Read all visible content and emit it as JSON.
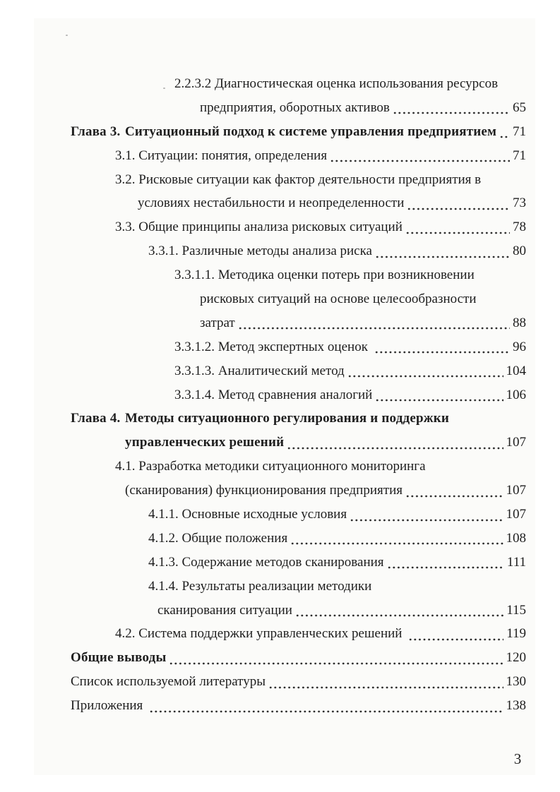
{
  "page": {
    "footer_page_number": "3"
  },
  "colors": {
    "text": "#1e1e1e",
    "dot": "#2a2a2a",
    "page_background": "#fbfbf9",
    "backdrop": "#ffffff"
  },
  "toc": {
    "entries": [
      {
        "indent": "sub3",
        "text": "2.2.3.2 Диагностическая оценка использования ресурсов",
        "bold": false,
        "page": null
      },
      {
        "indent": "sub3-cont",
        "text": "предприятия, оборотных активов",
        "bold": false,
        "page": "65"
      },
      {
        "indent": "chapter",
        "label": "Глава 3.",
        "text": "Ситуационный подход к системе управления предприятием",
        "bold": true,
        "page": "71"
      },
      {
        "indent": "sub1",
        "text": "3.1. Ситуации: понятия, определения",
        "bold": false,
        "page": "71"
      },
      {
        "indent": "sub1",
        "text": "3.2. Рисковые ситуации как фактор деятельности предприятия в",
        "bold": false,
        "page": null
      },
      {
        "indent": "sub1-cont",
        "text": "условиях нестабильности и неопределенности",
        "bold": false,
        "page": "73"
      },
      {
        "indent": "sub1",
        "text": "3.3. Общие принципы анализа рисковых ситуаций",
        "bold": false,
        "page": "78"
      },
      {
        "indent": "sub2",
        "text": "3.3.1. Различные методы анализа риска",
        "bold": false,
        "page": "80"
      },
      {
        "indent": "sub3",
        "text": "3.3.1.1. Методика оценки потерь при возникновении",
        "bold": false,
        "page": null
      },
      {
        "indent": "sub3-cont",
        "text": "рисковых ситуаций на основе целесообразности",
        "bold": false,
        "page": null
      },
      {
        "indent": "sub3-cont",
        "text": "затрат",
        "bold": false,
        "page": "88"
      },
      {
        "indent": "sub3",
        "text": "3.3.1.2. Метод экспертных оценок ",
        "bold": false,
        "page": "96"
      },
      {
        "indent": "sub3",
        "text": "3.3.1.3. Аналитический метод",
        "bold": false,
        "page": "104"
      },
      {
        "indent": "sub3",
        "text": "3.3.1.4. Метод сравнения аналогий",
        "bold": false,
        "page": "106"
      },
      {
        "indent": "chapter",
        "label": "Глава 4.",
        "text": "Методы ситуационного регулирования и поддержки",
        "bold": true,
        "page": null
      },
      {
        "indent": "chapter-cont",
        "text": "управленческих решений",
        "bold": true,
        "page": "107"
      },
      {
        "indent": "sub1",
        "text": "4.1. Разработка методики ситуационного мониторинга",
        "bold": false,
        "page": null
      },
      {
        "indent": "chapter-cont",
        "text": "(сканирования) функционирования предприятия",
        "bold": false,
        "page": "107"
      },
      {
        "indent": "sub2",
        "text": "4.1.1. Основные исходные условия",
        "bold": false,
        "page": "107"
      },
      {
        "indent": "sub2",
        "text": "4.1.2. Общие положения",
        "bold": false,
        "page": "108"
      },
      {
        "indent": "sub2",
        "text": "4.1.3. Содержание методов сканирования",
        "bold": false,
        "page": "111"
      },
      {
        "indent": "sub2",
        "text": "4.1.4. Результаты реализации методики",
        "bold": false,
        "page": null
      },
      {
        "indent": "sub2-cont",
        "text": "сканирования ситуации",
        "bold": false,
        "page": "115"
      },
      {
        "indent": "sub1",
        "text": "4.2. Система поддержки управленческих решений ",
        "bold": false,
        "page": "119"
      },
      {
        "indent": "chapter",
        "text": "Общие выводы",
        "bold": true,
        "page": "120"
      },
      {
        "indent": "chapter",
        "text": "Список используемой литературы",
        "bold": false,
        "page": "130"
      },
      {
        "indent": "chapter",
        "text": "Приложения ",
        "bold": false,
        "page": "138"
      }
    ]
  }
}
